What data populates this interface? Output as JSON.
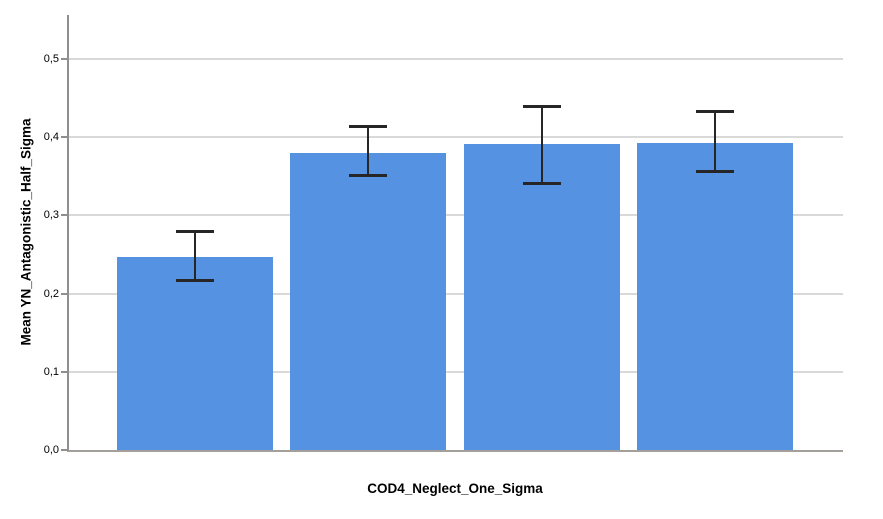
{
  "chart_data": {
    "type": "bar",
    "title": "",
    "xlabel": "COD4_Neglect_One_Sigma",
    "ylabel": "Mean YN_Antagonistic_Half_Sigma",
    "ylim": [
      0,
      0.556
    ],
    "grid": true,
    "legend": false,
    "decimal_separator": ",",
    "yticks": [
      {
        "value": 0.0,
        "label": "0,0"
      },
      {
        "value": 0.1,
        "label": "0,1"
      },
      {
        "value": 0.2,
        "label": "0,2"
      },
      {
        "value": 0.3,
        "label": "0,3"
      },
      {
        "value": 0.4,
        "label": "0,4"
      },
      {
        "value": 0.5,
        "label": "0,5"
      }
    ],
    "bars": [
      {
        "mean": 0.247,
        "ci_low": 0.215,
        "ci_high": 0.281
      },
      {
        "mean": 0.38,
        "ci_low": 0.349,
        "ci_high": 0.415
      },
      {
        "mean": 0.391,
        "ci_low": 0.339,
        "ci_high": 0.441
      },
      {
        "mean": 0.393,
        "ci_low": 0.354,
        "ci_high": 0.435
      }
    ],
    "error_bar_style": "capped_whisker_95ci",
    "colors": {
      "bar_fill": "#5592e2",
      "error_bar": "#262626",
      "gridline": "#d9d9d9",
      "axis_line": "#8f8f8f",
      "axis_line_bottom": "#a3a09c",
      "text": "#000000"
    }
  }
}
